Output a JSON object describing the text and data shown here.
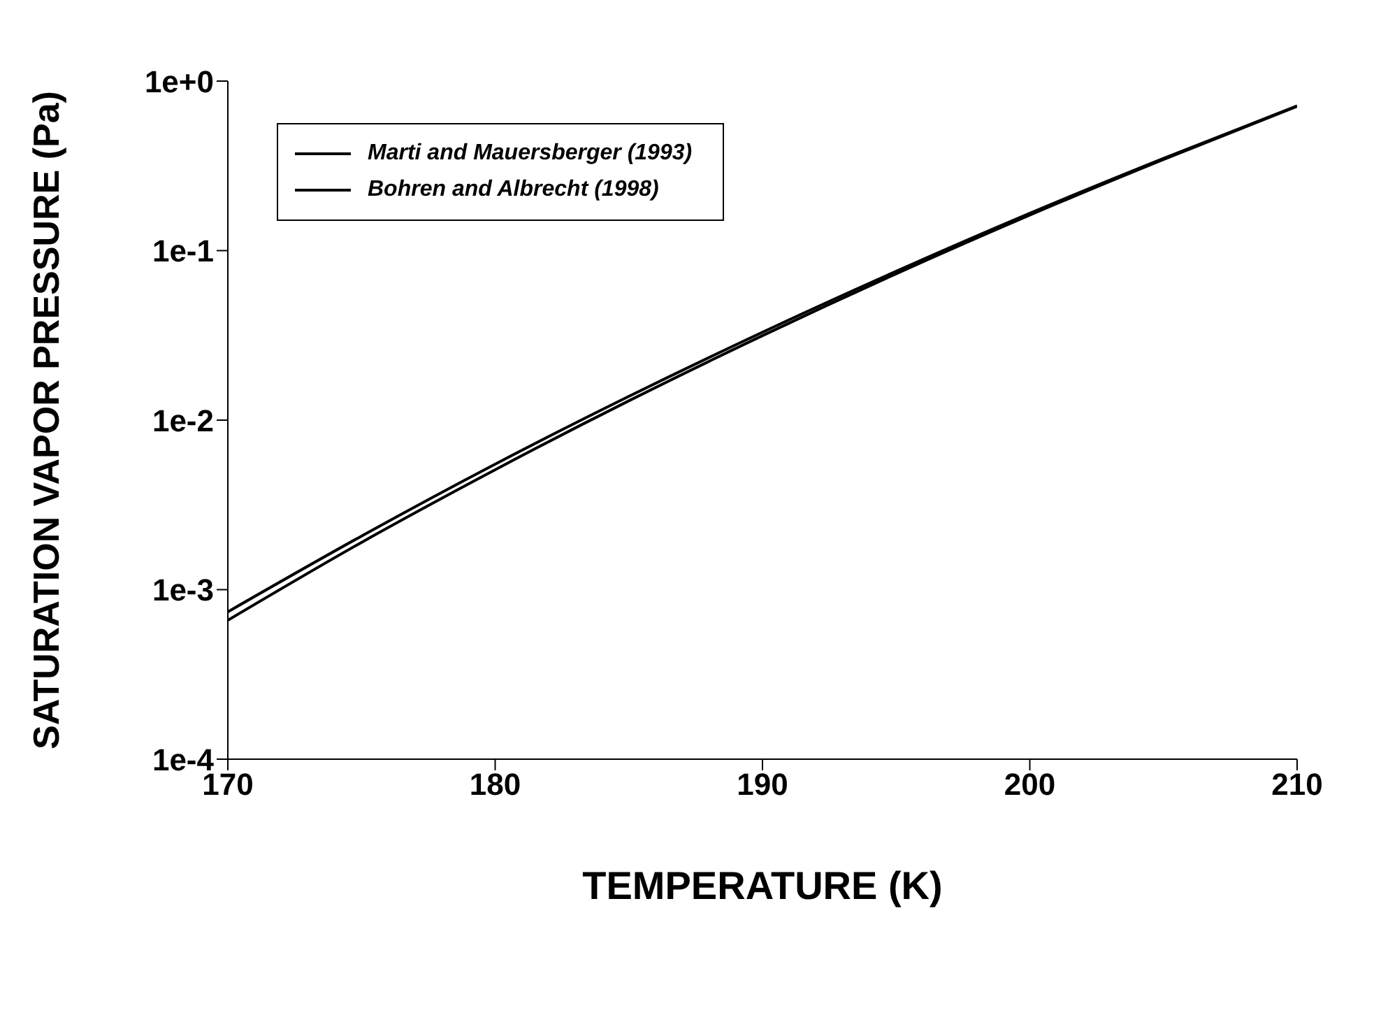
{
  "chart_data": {
    "type": "line",
    "xlabel": "TEMPERATURE (K)",
    "ylabel": "SATURATION VAPOR PRESSURE (Pa)",
    "x": [
      170,
      175,
      180,
      185,
      190,
      195,
      200,
      205,
      210
    ],
    "series": [
      {
        "name": "Marti and Mauersberger (1993)",
        "color": "#000000",
        "values": [
          0.00074,
          0.00207,
          0.0055,
          0.0138,
          0.033,
          0.0755,
          0.166,
          0.35,
          0.714
        ]
      },
      {
        "name": "Bohren and Albrecht (1998)",
        "color": "#000000",
        "values": [
          0.00066,
          0.0019,
          0.0051,
          0.013,
          0.0315,
          0.073,
          0.162,
          0.345,
          0.71
        ]
      }
    ],
    "log": "y",
    "xlim": [
      170,
      210
    ],
    "xticks": [
      170,
      180,
      190,
      200,
      210
    ],
    "ylim": [
      0.0001,
      1
    ],
    "yticks": [
      {
        "value": 0.0001,
        "label": "1e-4"
      },
      {
        "value": 0.001,
        "label": "1e-3"
      },
      {
        "value": 0.01,
        "label": "1e-2"
      },
      {
        "value": 0.1,
        "label": "1e-1"
      },
      {
        "value": 1,
        "label": "1e+0"
      }
    ],
    "grid": false,
    "legend": "top left",
    "marker": "none",
    "line_style": "solid"
  }
}
